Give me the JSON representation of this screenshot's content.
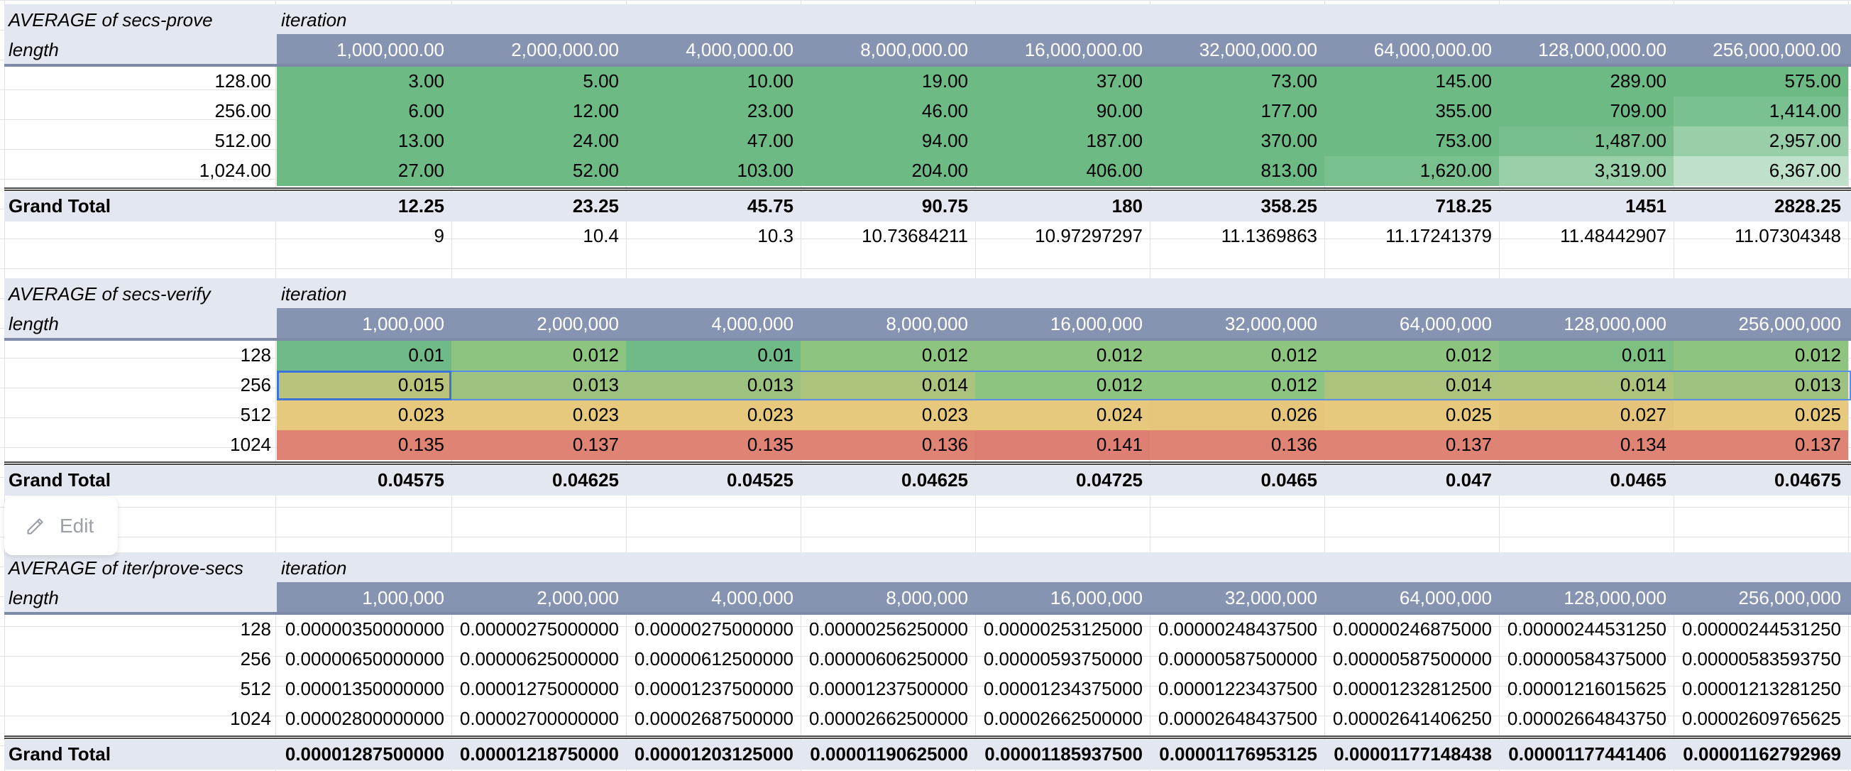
{
  "colors": {
    "header_band": "#8794b1",
    "title_band": "#e3e7ef",
    "prove_cells": [
      [
        "#6dba85",
        "#6dba85",
        "#6dba85",
        "#6dba85",
        "#6dba85",
        "#6dba85",
        "#6dba85",
        "#6dba85",
        "#6dba85"
      ],
      [
        "#6dba85",
        "#6dba85",
        "#6dba85",
        "#6dba85",
        "#6dba85",
        "#6dba85",
        "#6dba85",
        "#6dba85",
        "#7bc090"
      ],
      [
        "#6dba85",
        "#6dba85",
        "#6dba85",
        "#6dba85",
        "#6dba85",
        "#6dba85",
        "#6dba85",
        "#79bf8e",
        "#98cea8"
      ],
      [
        "#6dba85",
        "#6dba85",
        "#6dba85",
        "#6dba85",
        "#6dba85",
        "#6dba85",
        "#7ac08f",
        "#99cfa9",
        "#bfe1c9"
      ]
    ],
    "verify_cells": [
      [
        "#6fba87",
        "#8dc47f",
        "#6fba87",
        "#8dc47f",
        "#8dc47f",
        "#8dc47f",
        "#8dc47f",
        "#7ebf82",
        "#8dc47f"
      ],
      [
        "#b9c37c",
        "#9dc27f",
        "#9dc27f",
        "#acc37d",
        "#8dc47f",
        "#8dc47f",
        "#acc37d",
        "#acc37d",
        "#9dc27f"
      ],
      [
        "#e6c97c",
        "#e6c97c",
        "#e6c97c",
        "#e6c97c",
        "#e6c97c",
        "#e5c67b",
        "#e6c97c",
        "#e4c47a",
        "#e6c97c"
      ],
      [
        "#df8374",
        "#df8374",
        "#df8374",
        "#df8374",
        "#dd7f72",
        "#df8374",
        "#df8374",
        "#df8374",
        "#df8374"
      ]
    ]
  },
  "edit_chip": {
    "label": "Edit",
    "icon": "pencil-icon"
  },
  "pivot_prove": {
    "title": "AVERAGE of secs-prove",
    "col_field": "iteration",
    "row_field": "length",
    "columns": [
      "1,000,000.00",
      "2,000,000.00",
      "4,000,000.00",
      "8,000,000.00",
      "16,000,000.00",
      "32,000,000.00",
      "64,000,000.00",
      "128,000,000.00",
      "256,000,000.00"
    ],
    "rows": [
      {
        "label": "128.00",
        "values": [
          "3.00",
          "5.00",
          "10.00",
          "19.00",
          "37.00",
          "73.00",
          "145.00",
          "289.00",
          "575.00"
        ]
      },
      {
        "label": "256.00",
        "values": [
          "6.00",
          "12.00",
          "23.00",
          "46.00",
          "90.00",
          "177.00",
          "355.00",
          "709.00",
          "1,414.00"
        ]
      },
      {
        "label": "512.00",
        "values": [
          "13.00",
          "24.00",
          "47.00",
          "94.00",
          "187.00",
          "370.00",
          "753.00",
          "1,487.00",
          "2,957.00"
        ]
      },
      {
        "label": "1,024.00",
        "values": [
          "27.00",
          "52.00",
          "103.00",
          "204.00",
          "406.00",
          "813.00",
          "1,620.00",
          "3,319.00",
          "6,367.00"
        ]
      }
    ],
    "grand_total_label": "Grand Total",
    "grand_total": [
      "12.25",
      "23.25",
      "45.75",
      "90.75",
      "180",
      "358.25",
      "718.25",
      "1451",
      "2828.25"
    ],
    "extra_row": [
      "9",
      "10.4",
      "10.3",
      "10.73684211",
      "10.97297297",
      "11.1369863",
      "11.17241379",
      "11.48442907",
      "11.07304348"
    ]
  },
  "pivot_verify": {
    "title": "AVERAGE of secs-verify",
    "col_field": "iteration",
    "row_field": "length",
    "columns": [
      "1,000,000",
      "2,000,000",
      "4,000,000",
      "8,000,000",
      "16,000,000",
      "32,000,000",
      "64,000,000",
      "128,000,000",
      "256,000,000"
    ],
    "rows": [
      {
        "label": "128",
        "values": [
          "0.01",
          "0.012",
          "0.01",
          "0.012",
          "0.012",
          "0.012",
          "0.012",
          "0.011",
          "0.012"
        ]
      },
      {
        "label": "256",
        "values": [
          "0.015",
          "0.013",
          "0.013",
          "0.014",
          "0.012",
          "0.012",
          "0.014",
          "0.014",
          "0.013"
        ]
      },
      {
        "label": "512",
        "values": [
          "0.023",
          "0.023",
          "0.023",
          "0.023",
          "0.024",
          "0.026",
          "0.025",
          "0.027",
          "0.025"
        ]
      },
      {
        "label": "1024",
        "values": [
          "0.135",
          "0.137",
          "0.135",
          "0.136",
          "0.141",
          "0.136",
          "0.137",
          "0.134",
          "0.137"
        ]
      }
    ],
    "grand_total_label": "Grand Total",
    "grand_total": [
      "0.04575",
      "0.04625",
      "0.04525",
      "0.04625",
      "0.04725",
      "0.0465",
      "0.047",
      "0.0465",
      "0.04675"
    ]
  },
  "pivot_iter": {
    "title": "AVERAGE of iter/prove-secs",
    "col_field": "iteration",
    "row_field": "length",
    "columns": [
      "1,000,000",
      "2,000,000",
      "4,000,000",
      "8,000,000",
      "16,000,000",
      "32,000,000",
      "64,000,000",
      "128,000,000",
      "256,000,000"
    ],
    "rows": [
      {
        "label": "128",
        "values": [
          "0.00000350000000",
          "0.00000275000000",
          "0.00000275000000",
          "0.00000256250000",
          "0.00000253125000",
          "0.00000248437500",
          "0.00000246875000",
          "0.00000244531250",
          "0.00000244531250"
        ]
      },
      {
        "label": "256",
        "values": [
          "0.00000650000000",
          "0.00000625000000",
          "0.00000612500000",
          "0.00000606250000",
          "0.00000593750000",
          "0.00000587500000",
          "0.00000587500000",
          "0.00000584375000",
          "0.00000583593750"
        ]
      },
      {
        "label": "512",
        "values": [
          "0.00001350000000",
          "0.00001275000000",
          "0.00001237500000",
          "0.00001237500000",
          "0.00001234375000",
          "0.00001223437500",
          "0.00001232812500",
          "0.00001216015625",
          "0.00001213281250"
        ]
      },
      {
        "label": "1024",
        "values": [
          "0.00002800000000",
          "0.00002700000000",
          "0.00002687500000",
          "0.00002662500000",
          "0.00002662500000",
          "0.00002648437500",
          "0.00002641406250",
          "0.00002664843750",
          "0.00002609765625"
        ]
      }
    ],
    "grand_total_label": "Grand Total",
    "grand_total": [
      "0.00001287500000",
      "0.00001218750000",
      "0.00001203125000",
      "0.00001190625000",
      "0.00001185937500",
      "0.00001176953125",
      "0.00001177148438",
      "0.00001177441406",
      "0.00001162792969"
    ]
  }
}
